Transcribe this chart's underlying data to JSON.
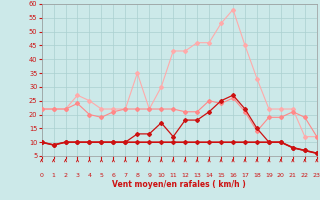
{
  "xlabel": "Vent moyen/en rafales ( km/h )",
  "xlim": [
    0,
    23
  ],
  "ylim": [
    5,
    60
  ],
  "yticks": [
    5,
    10,
    15,
    20,
    25,
    30,
    35,
    40,
    45,
    50,
    55,
    60
  ],
  "xticks": [
    0,
    1,
    2,
    3,
    4,
    5,
    6,
    7,
    8,
    9,
    10,
    11,
    12,
    13,
    14,
    15,
    16,
    17,
    18,
    19,
    20,
    21,
    22,
    23
  ],
  "bg_color": "#cce9e9",
  "grid_color": "#aad0d0",
  "series": [
    {
      "color": "#ffaaaa",
      "lw": 0.8,
      "ms": 2.0,
      "y": [
        22,
        22,
        22,
        27,
        25,
        22,
        22,
        22,
        35,
        22,
        30,
        43,
        43,
        46,
        46,
        53,
        58,
        45,
        33,
        22,
        22,
        22,
        12,
        12
      ]
    },
    {
      "color": "#ff8888",
      "lw": 0.8,
      "ms": 2.0,
      "y": [
        22,
        22,
        22,
        24,
        20,
        19,
        21,
        22,
        22,
        22,
        22,
        22,
        21,
        21,
        25,
        24,
        26,
        21,
        14,
        19,
        19,
        21,
        19,
        12
      ]
    },
    {
      "color": "#cc1111",
      "lw": 0.9,
      "ms": 2.0,
      "y": [
        10,
        9,
        10,
        10,
        10,
        10,
        10,
        10,
        13,
        13,
        17,
        12,
        18,
        18,
        21,
        25,
        27,
        22,
        15,
        10,
        10,
        8,
        7,
        6
      ]
    },
    {
      "color": "#cc1111",
      "lw": 1.2,
      "ms": 2.0,
      "y": [
        10,
        9,
        10,
        10,
        10,
        10,
        10,
        10,
        10,
        10,
        10,
        10,
        10,
        10,
        10,
        10,
        10,
        10,
        10,
        10,
        10,
        8,
        7,
        6
      ]
    }
  ],
  "arrow_color": "#cc1111",
  "tick_color": "#cc1111",
  "xlabel_color": "#cc1111"
}
